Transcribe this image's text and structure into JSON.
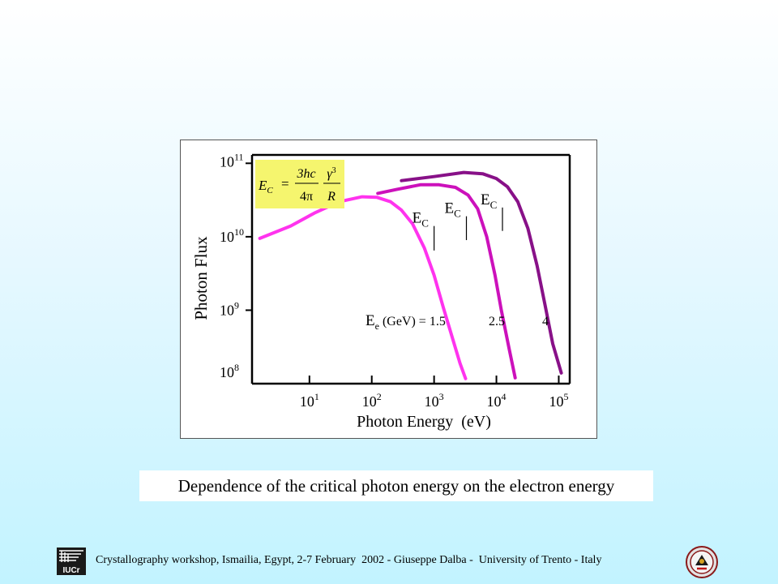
{
  "chart_data": {
    "type": "line",
    "title": "",
    "xlabel": "Photon Energy  (eV)",
    "ylabel": "Photon Flux",
    "x_scale": "log",
    "y_scale": "log",
    "x_ticks": [
      {
        "value": 10,
        "base": "10",
        "exp": "1"
      },
      {
        "value": 100,
        "base": "10",
        "exp": "2"
      },
      {
        "value": 1000,
        "base": "10",
        "exp": "3"
      },
      {
        "value": 10000,
        "base": "10",
        "exp": "4"
      },
      {
        "value": 100000,
        "base": "10",
        "exp": "5"
      }
    ],
    "y_ticks": [
      {
        "value": 100000000,
        "base": "10",
        "exp": "8"
      },
      {
        "value": 1000000000,
        "base": "10",
        "exp": "9"
      },
      {
        "value": 10000000000,
        "base": "10",
        "exp": "10"
      },
      {
        "value": 100000000000,
        "base": "10",
        "exp": "11"
      }
    ],
    "xlim": [
      1.2,
      150000
    ],
    "ylim": [
      100000000,
      130000000000
    ],
    "grid": false,
    "series": [
      {
        "label": "1.5",
        "color": "#ff33ee",
        "x": [
          1.6,
          5,
          12,
          30,
          70,
          120,
          200,
          300,
          450,
          700,
          1000,
          1400,
          2000,
          2600,
          3200
        ],
        "y": [
          9500000000,
          14000000000,
          21000000000,
          30000000000,
          35000000000,
          34500000000,
          30000000000,
          23000000000,
          15000000000,
          7000000000,
          3000000000,
          1100000000,
          400000000,
          190000000,
          117000000
        ]
      },
      {
        "label": "2.5",
        "color": "#cc11bb",
        "x": [
          125,
          250,
          600,
          1200,
          2200,
          3500,
          5000,
          7000,
          9500,
          12000,
          16000,
          20000
        ],
        "y": [
          39000000000,
          44000000000,
          51000000000,
          51000000000,
          47000000000,
          37000000000,
          24000000000,
          10000000000,
          3000000000,
          1000000000,
          300000000,
          120000000
        ]
      },
      {
        "label": "4",
        "color": "#881188",
        "x": [
          300,
          1000,
          3000,
          6000,
          10000,
          15000,
          22000,
          32000,
          45000,
          60000,
          80000,
          110000
        ],
        "y": [
          58000000000,
          66000000000,
          75000000000,
          72000000000,
          62000000000,
          48000000000,
          30000000000,
          13000000000,
          4000000000,
          1200000000,
          350000000,
          140000000
        ]
      }
    ],
    "ec_markers": [
      {
        "x": 1000,
        "y_top": 14000000000,
        "y_bottom": 6500000000
      },
      {
        "x": 3300,
        "y_top": 19000000000,
        "y_bottom": 9000000000
      },
      {
        "x": 12500,
        "y_top": 25000000000,
        "y_bottom": 12000000000
      }
    ],
    "annotations": {
      "ec_base": "E",
      "ec_sub": "C",
      "energy_label_main": "E",
      "energy_label_sub": "e",
      "energy_label_rest": "(GeV) = 1.5",
      "energy_2": "2.5",
      "energy_3": "4"
    },
    "formula": {
      "lhs_base": "E",
      "lhs_sub": "C",
      "eq": "=",
      "frac1_num": "3hc",
      "frac1_den": "4π",
      "frac2_num_base": "γ",
      "frac2_num_exp": "3",
      "frac2_den": "R",
      "box_color": "#f5f56e"
    }
  },
  "caption": "Dependence of the critical photon energy on the electron energy",
  "footer": {
    "text": "Crystallography workshop, Ismailia, Egypt, 2-7 February  2002 - Giuseppe Dalba -  University of Trento - Italy",
    "logo_text": "IUCr"
  }
}
